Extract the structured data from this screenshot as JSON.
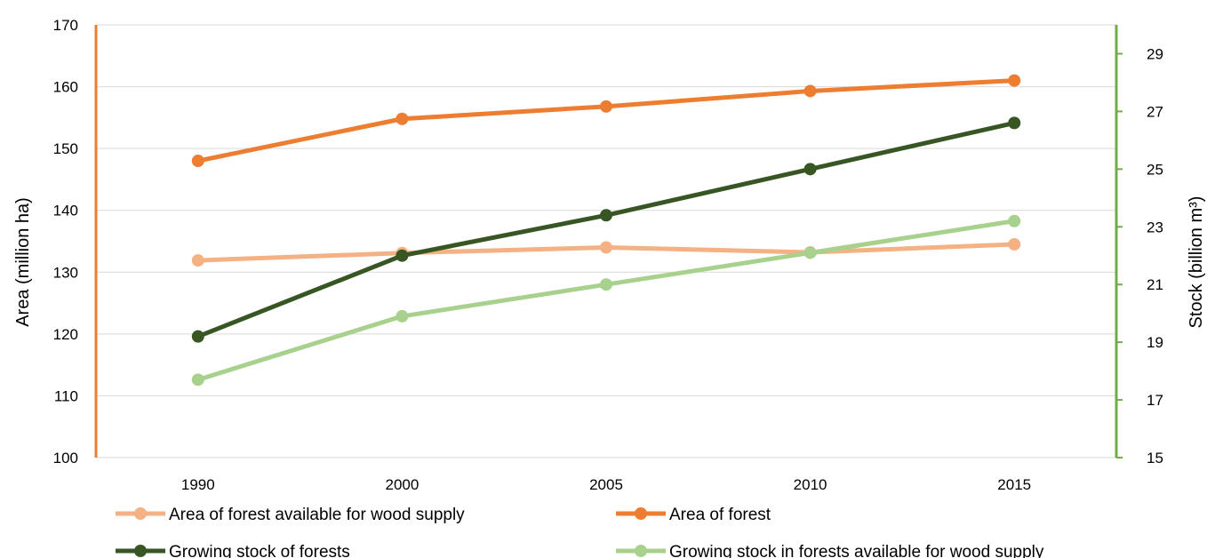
{
  "chart_data": {
    "type": "line",
    "categories": [
      "1990",
      "2000",
      "2005",
      "2010",
      "2015"
    ],
    "left_axis": {
      "label": "Area (million ha)",
      "ylim": [
        100,
        170
      ],
      "ticks": [
        "100",
        "110",
        "120",
        "130",
        "140",
        "150",
        "160",
        "170"
      ],
      "color": "#ed7d31"
    },
    "right_axis": {
      "label": "Stock (billion m³)",
      "ylim": [
        15,
        30
      ],
      "ticks": [
        "15",
        "17",
        "19",
        "21",
        "23",
        "25",
        "27",
        "29"
      ],
      "color": "#70ad47"
    },
    "grid": true,
    "legend_position": "bottom",
    "series": [
      {
        "name": "Area of forest available for wood supply",
        "axis": "left",
        "color": "#f4b183",
        "values": [
          131.9,
          133.1,
          134.0,
          133.2,
          134.5
        ]
      },
      {
        "name": "Area of forest",
        "axis": "left",
        "color": "#ed7d31",
        "values": [
          148.0,
          154.8,
          156.8,
          159.3,
          161.0
        ]
      },
      {
        "name": "Growing stock of forests",
        "axis": "right",
        "color": "#375623",
        "values": [
          19.2,
          22.0,
          23.4,
          25.0,
          26.6
        ]
      },
      {
        "name": "Growing stock in forests available for wood supply",
        "axis": "right",
        "color": "#a9d18e",
        "values": [
          17.7,
          19.9,
          21.0,
          22.1,
          23.2
        ]
      }
    ]
  }
}
